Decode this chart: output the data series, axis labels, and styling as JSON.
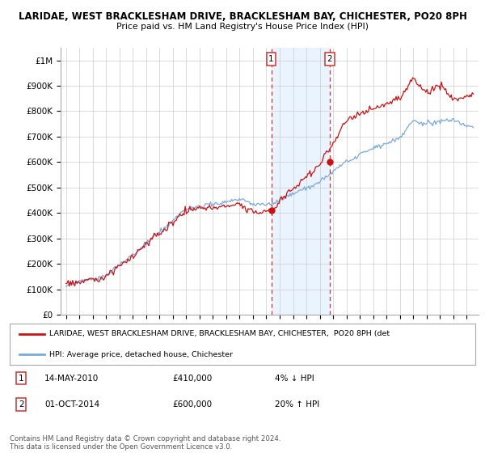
{
  "title": "LARIDAE, WEST BRACKLESHAM DRIVE, BRACKLESHAM BAY, CHICHESTER, PO20 8PH",
  "subtitle": "Price paid vs. HM Land Registry's House Price Index (HPI)",
  "ylim": [
    0,
    1050000
  ],
  "yticks": [
    0,
    100000,
    200000,
    300000,
    400000,
    500000,
    600000,
    700000,
    800000,
    900000,
    1000000
  ],
  "ytick_labels": [
    "£0",
    "£100K",
    "£200K",
    "£300K",
    "£400K",
    "£500K",
    "£600K",
    "£700K",
    "£800K",
    "£900K",
    "£1M"
  ],
  "hpi_color": "#7aaadd",
  "price_color": "#cc1111",
  "marker1_year": 2010.37,
  "marker2_year": 2014.75,
  "shade_color": "#ddeeff",
  "vline_color": "#cc3333",
  "background_color": "#ffffff",
  "legend_price_label": "LARIDAE, WEST BRACKLESHAM DRIVE, BRACKLESHAM BAY, CHICHESTER,  PO20 8PH (det",
  "legend_hpi_label": "HPI: Average price, detached house, Chichester",
  "footer": "Contains HM Land Registry data © Crown copyright and database right 2024.\nThis data is licensed under the Open Government Licence v3.0."
}
